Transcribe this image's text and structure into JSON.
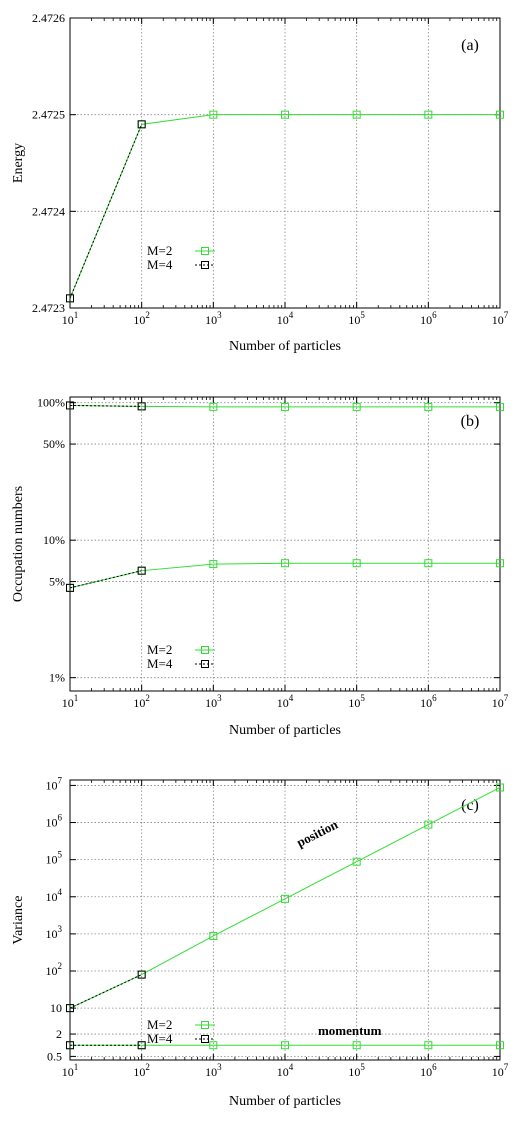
{
  "colors": {
    "m2": "#33dd33",
    "m4": "#000000",
    "grid": "#888888"
  },
  "chart_data": [
    {
      "type": "line",
      "panel_label": "(a)",
      "xscale": "log",
      "xlabel": "Number of particles",
      "ylabel": "Energy",
      "xlim": [
        10,
        10000000
      ],
      "ylim": [
        2.4723,
        2.4726
      ],
      "x_ticks": [
        {
          "v": 10,
          "b": "10",
          "e": "1"
        },
        {
          "v": 100,
          "b": "10",
          "e": "2"
        },
        {
          "v": 1000,
          "b": "10",
          "e": "3"
        },
        {
          "v": 10000,
          "b": "10",
          "e": "4"
        },
        {
          "v": 100000,
          "b": "10",
          "e": "5"
        },
        {
          "v": 1000000,
          "b": "10",
          "e": "6"
        },
        {
          "v": 10000000,
          "b": "10",
          "e": "7"
        }
      ],
      "y_ticks": [
        {
          "v": 2.4723,
          "label": "2.4723"
        },
        {
          "v": 2.4724,
          "label": "2.4724"
        },
        {
          "v": 2.4725,
          "label": "2.4725"
        },
        {
          "v": 2.4726,
          "label": "2.4726"
        }
      ],
      "legend": [
        "M=2",
        "M=4"
      ],
      "series": [
        {
          "name": "M=2",
          "x": [
            10,
            100,
            1000,
            10000,
            100000,
            1000000,
            10000000
          ],
          "y": [
            2.47231,
            2.47249,
            2.4725,
            2.4725,
            2.4725,
            2.4725,
            2.4725
          ]
        },
        {
          "name": "M=4",
          "x": [
            10,
            100
          ],
          "y": [
            2.47231,
            2.47249
          ]
        }
      ],
      "annotations": []
    },
    {
      "type": "line",
      "panel_label": "(b)",
      "xscale": "log",
      "yscale": "log",
      "xlabel": "Number of particles",
      "ylabel": "Occupation numbers",
      "xlim": [
        10,
        10000000
      ],
      "ylim": [
        0.8,
        110
      ],
      "x_ticks": [
        {
          "v": 10,
          "b": "10",
          "e": "1"
        },
        {
          "v": 100,
          "b": "10",
          "e": "2"
        },
        {
          "v": 1000,
          "b": "10",
          "e": "3"
        },
        {
          "v": 10000,
          "b": "10",
          "e": "4"
        },
        {
          "v": 100000,
          "b": "10",
          "e": "5"
        },
        {
          "v": 1000000,
          "b": "10",
          "e": "6"
        },
        {
          "v": 10000000,
          "b": "10",
          "e": "7"
        }
      ],
      "y_ticks": [
        {
          "v": 1,
          "label": "1%"
        },
        {
          "v": 5,
          "label": "5%"
        },
        {
          "v": 10,
          "label": "10%"
        },
        {
          "v": 50,
          "label": "50%"
        },
        {
          "v": 100,
          "label": "100%"
        }
      ],
      "legend": [
        "M=2",
        "M=4"
      ],
      "series": [
        {
          "name": "M=2",
          "x": [
            10,
            100,
            1000,
            10000,
            100000,
            1000000,
            10000000
          ],
          "y": [
            95.5,
            94.0,
            93.3,
            93.2,
            93.2,
            93.2,
            93.2
          ]
        },
        {
          "name": "M=2",
          "x": [
            10,
            100,
            1000,
            10000,
            100000,
            1000000,
            10000000
          ],
          "y": [
            4.5,
            6.0,
            6.7,
            6.8,
            6.8,
            6.8,
            6.8
          ]
        },
        {
          "name": "M=4",
          "x": [
            10,
            100
          ],
          "y": [
            95.5,
            94.0
          ]
        },
        {
          "name": "M=4",
          "x": [
            10,
            100
          ],
          "y": [
            4.5,
            6.0
          ]
        }
      ],
      "annotations": []
    },
    {
      "type": "line",
      "panel_label": "(c)",
      "xscale": "log",
      "yscale": "log",
      "xlabel": "Number of particles",
      "ylabel": "Variance",
      "xlim": [
        10,
        10000000
      ],
      "ylim": [
        0.4,
        14000000
      ],
      "x_ticks": [
        {
          "v": 10,
          "b": "10",
          "e": "1"
        },
        {
          "v": 100,
          "b": "10",
          "e": "2"
        },
        {
          "v": 1000,
          "b": "10",
          "e": "3"
        },
        {
          "v": 10000,
          "b": "10",
          "e": "4"
        },
        {
          "v": 100000,
          "b": "10",
          "e": "5"
        },
        {
          "v": 1000000,
          "b": "10",
          "e": "6"
        },
        {
          "v": 10000000,
          "b": "10",
          "e": "7"
        }
      ],
      "y_ticks": [
        {
          "v": 0.5,
          "b": "0.5",
          "e": ""
        },
        {
          "v": 2,
          "b": "2",
          "e": ""
        },
        {
          "v": 10,
          "b": "10",
          "e": ""
        },
        {
          "v": 100,
          "b": "10",
          "e": "2"
        },
        {
          "v": 1000,
          "b": "10",
          "e": "3"
        },
        {
          "v": 10000,
          "b": "10",
          "e": "4"
        },
        {
          "v": 100000,
          "b": "10",
          "e": "5"
        },
        {
          "v": 1000000,
          "b": "10",
          "e": "6"
        },
        {
          "v": 10000000,
          "b": "10",
          "e": "7"
        }
      ],
      "legend": [
        "M=2",
        "M=4"
      ],
      "series": [
        {
          "name": "M=2",
          "x": [
            10,
            100,
            1000,
            10000,
            100000,
            1000000,
            10000000
          ],
          "y": [
            10,
            80,
            880,
            8800,
            88000,
            880000,
            8800000
          ]
        },
        {
          "name": "M=2",
          "x": [
            10,
            100,
            1000,
            10000,
            100000,
            1000000,
            10000000
          ],
          "y": [
            1.0,
            1.0,
            1.0,
            1.0,
            1.0,
            1.0,
            1.0
          ]
        },
        {
          "name": "M=4",
          "x": [
            10,
            100
          ],
          "y": [
            10,
            80
          ]
        },
        {
          "name": "M=4",
          "x": [
            10,
            100
          ],
          "y": [
            1.0,
            1.0
          ]
        }
      ],
      "annotations": [
        {
          "text": "position",
          "x": 30000,
          "y": 400000,
          "rotate": -27
        },
        {
          "text": "momentum",
          "x": 80000,
          "y": 1.9,
          "rotate": 0
        }
      ]
    }
  ]
}
